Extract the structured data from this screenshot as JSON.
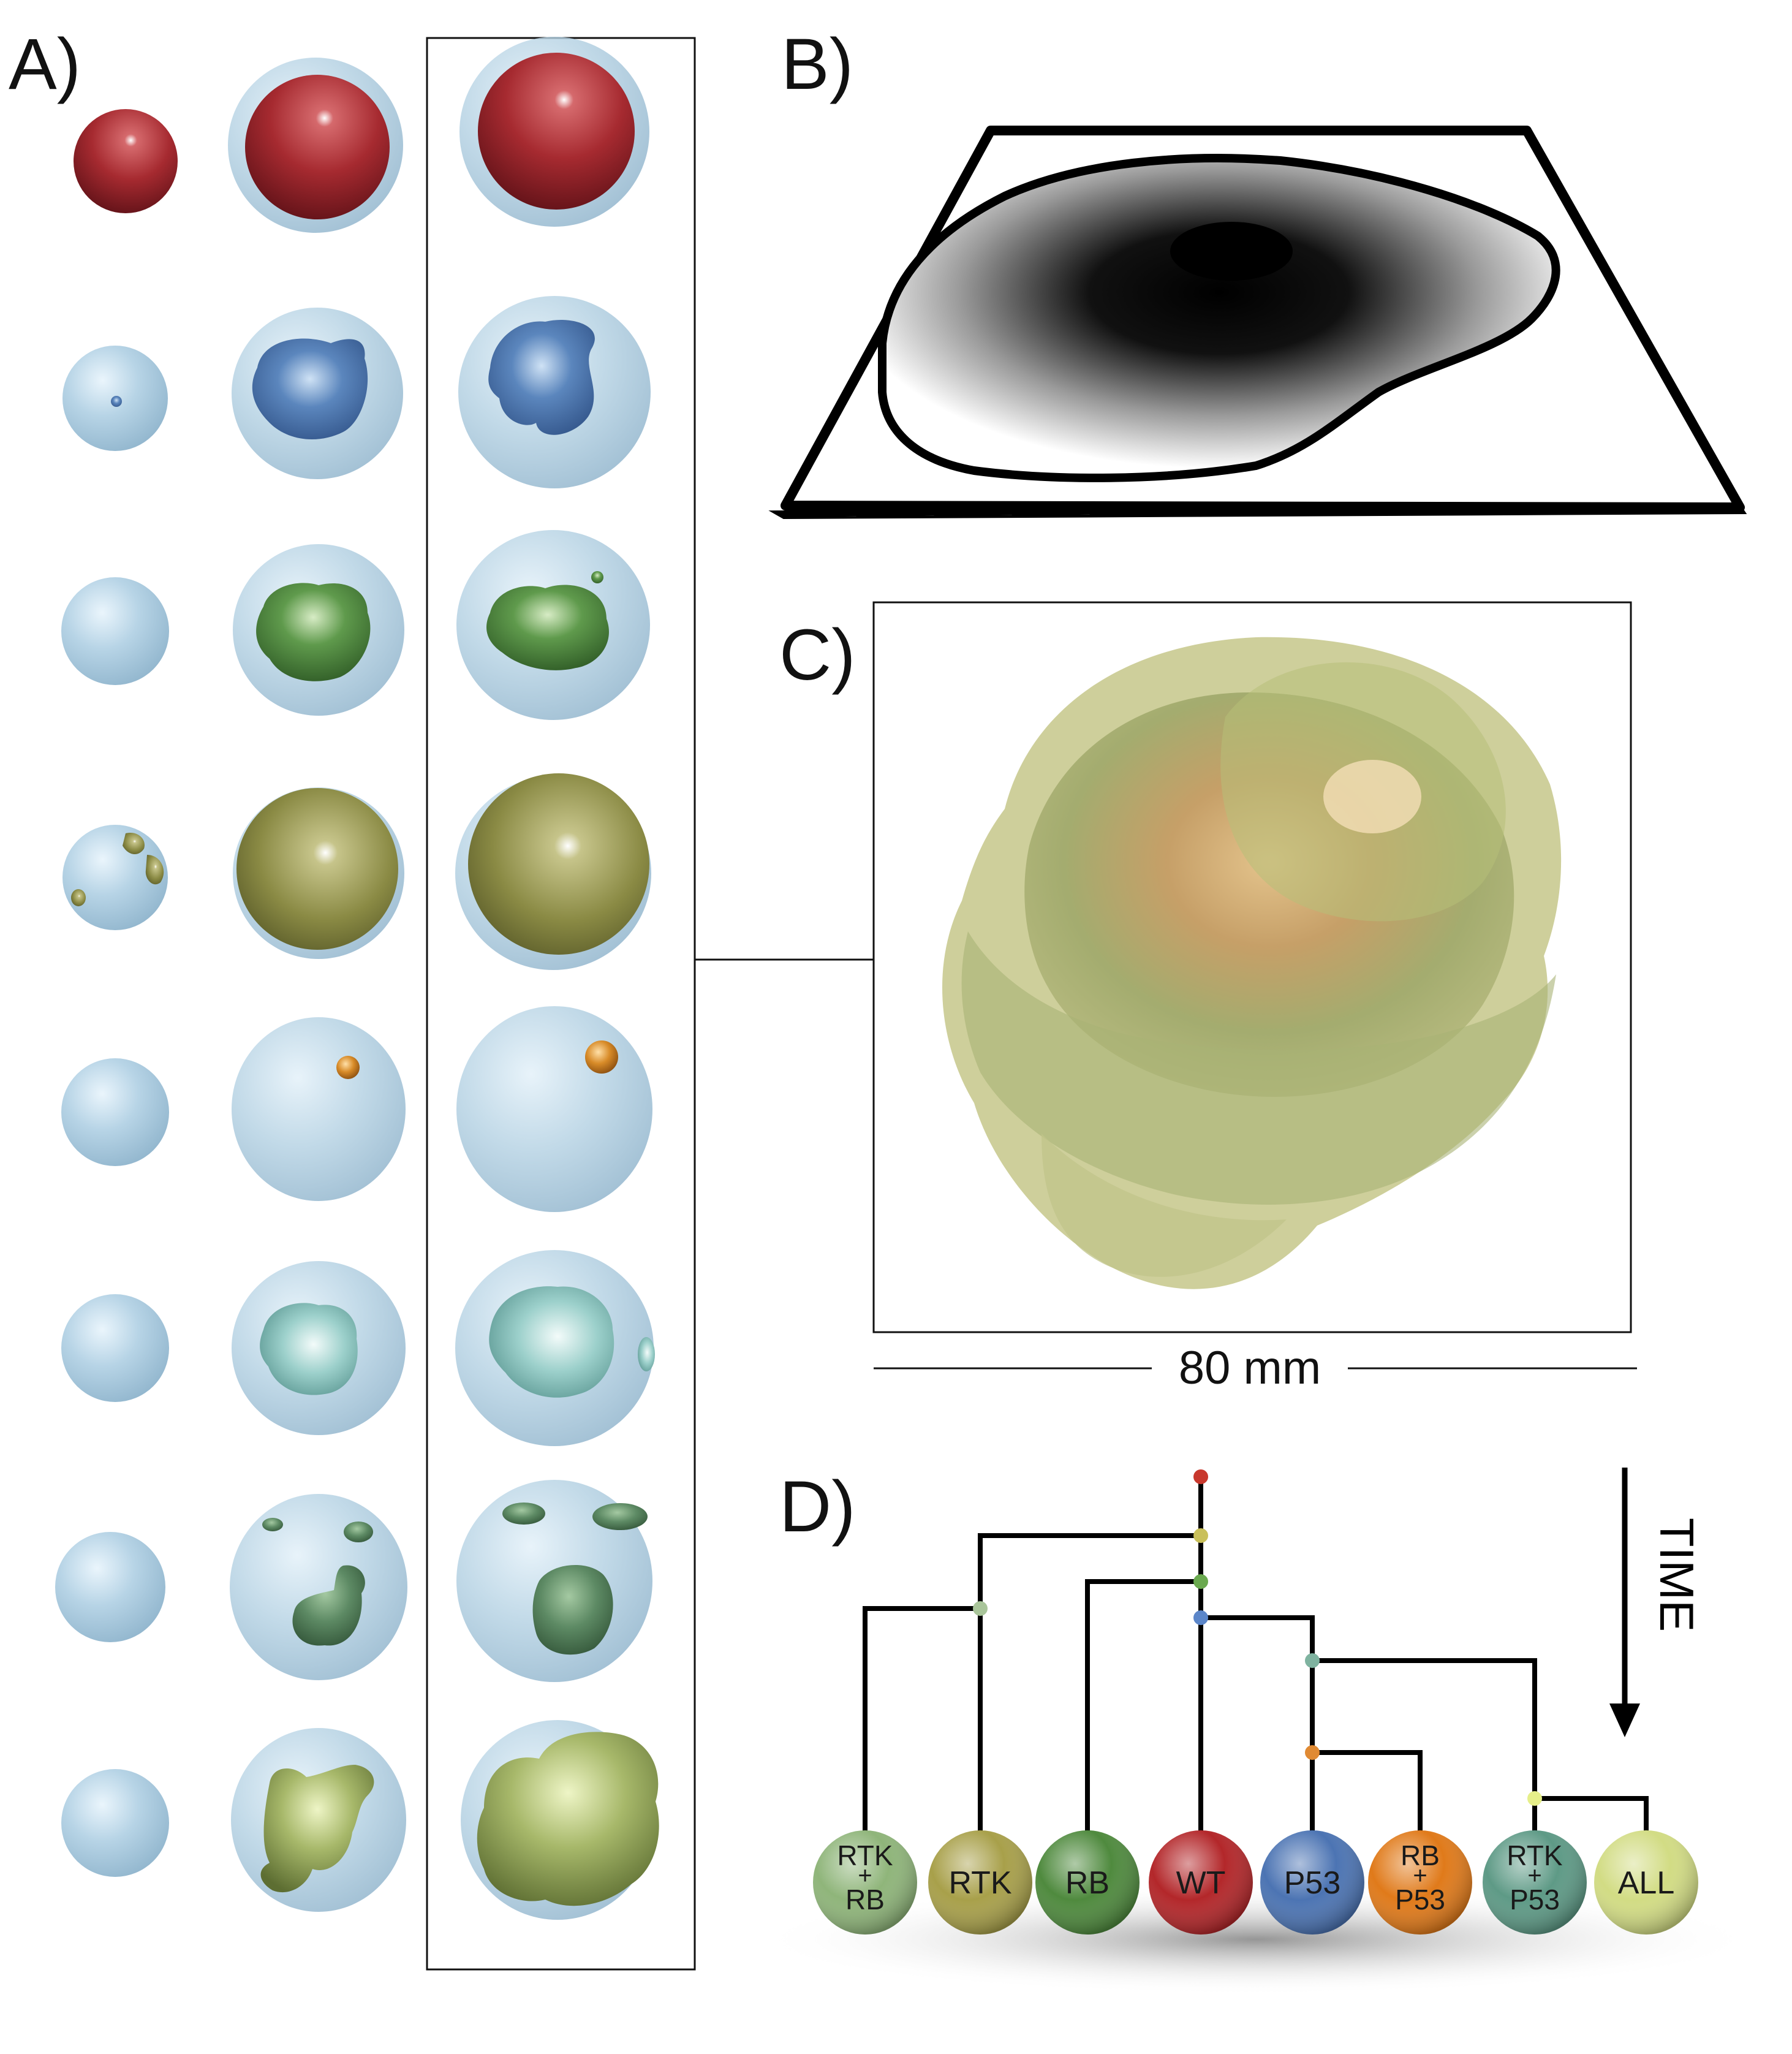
{
  "panels": {
    "a_label": "A)",
    "b_label": "B)",
    "c_label": "C)",
    "d_label": "D)"
  },
  "scale_bar": {
    "label": "80 mm"
  },
  "time_arrow": {
    "label": "TIME"
  },
  "colors": {
    "wt": "#b3272a",
    "p53": "#4c74b3",
    "rb": "#4f8a3e",
    "rtk": "#a8a04a",
    "rb_p53": "#e07a1a",
    "rtk_p53": "#5e9a86",
    "rtk_rb": "#8fb57a",
    "all": "#d2dc84",
    "host": "#a9cbe0"
  },
  "clones": [
    {
      "id": "rtk_rb",
      "line1": "RTK",
      "line2": "+",
      "line3": "RB"
    },
    {
      "id": "rtk",
      "line1": "RTK",
      "line2": "",
      "line3": ""
    },
    {
      "id": "rb",
      "line1": "RB",
      "line2": "",
      "line3": ""
    },
    {
      "id": "wt",
      "line1": "WT",
      "line2": "",
      "line3": ""
    },
    {
      "id": "p53",
      "line1": "P53",
      "line2": "",
      "line3": ""
    },
    {
      "id": "rb_p53",
      "line1": "RB",
      "line2": "+",
      "line3": "P53"
    },
    {
      "id": "rtk_p53",
      "line1": "RTK",
      "line2": "+",
      "line3": "P53"
    },
    {
      "id": "all",
      "line1": "ALL",
      "line2": "",
      "line3": ""
    }
  ]
}
